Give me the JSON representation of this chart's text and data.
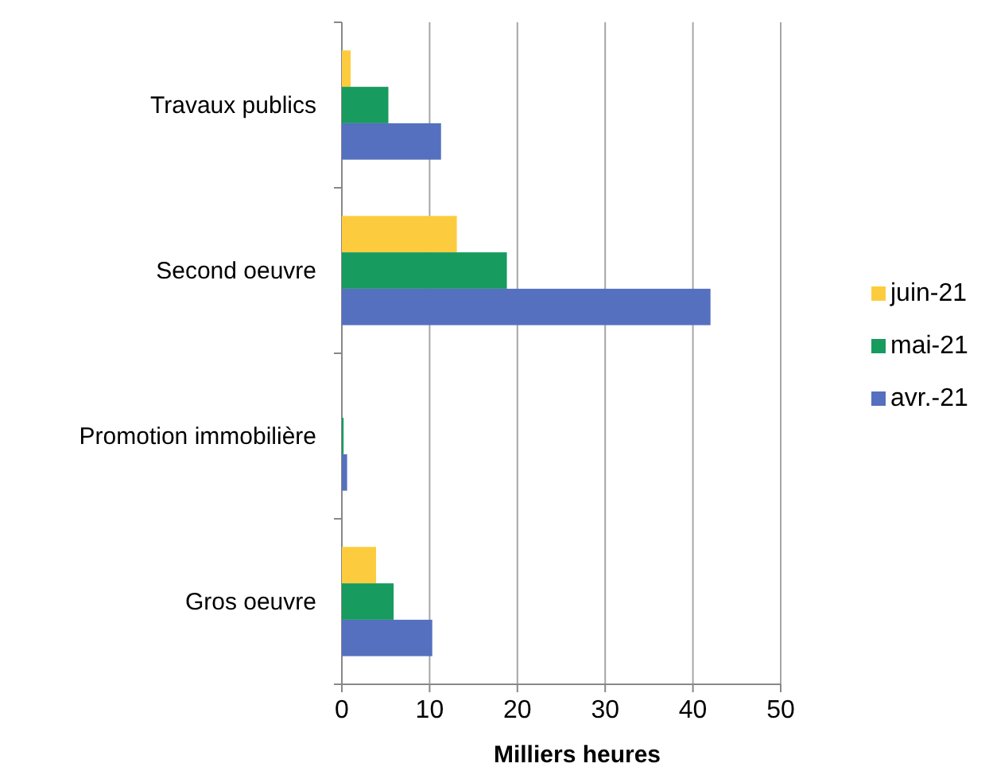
{
  "chart_data": {
    "type": "bar",
    "orientation": "horizontal",
    "xlabel": "Milliers heures",
    "categories": [
      "Travaux publics",
      "Second oeuvre",
      "Promotion immobilière",
      "Gros oeuvre"
    ],
    "series": [
      {
        "name": "juin-21",
        "color": "#fdcc3e",
        "values": [
          1.0,
          13.1,
          0,
          3.9
        ]
      },
      {
        "name": "mai-21",
        "color": "#189b5f",
        "values": [
          5.3,
          18.8,
          0.2,
          5.9
        ]
      },
      {
        "name": "avr.-21",
        "color": "#5570be",
        "values": [
          11.3,
          42.0,
          0.6,
          10.3
        ]
      }
    ],
    "xlim": [
      0,
      50
    ],
    "xticks": [
      0,
      10,
      20,
      30,
      40,
      50
    ],
    "grid": "x",
    "legend": "right"
  }
}
